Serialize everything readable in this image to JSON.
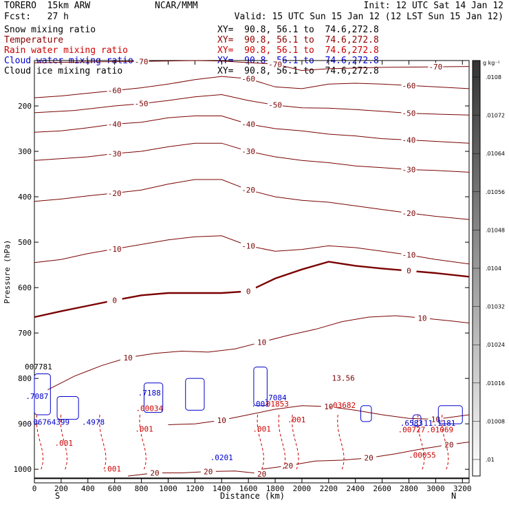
{
  "header": {
    "model": "TORERO  15km ARW",
    "forecast": "Fcst:   27 h",
    "center": "NCAR/MMM",
    "init": "Init: 12 UTC Sat 14 Jan 12",
    "valid": "Valid: 15 UTC Sun 15 Jan 12 (12 LST Sun 15 Jan 12)"
  },
  "fields": [
    {
      "label": "Snow mixing ratio",
      "xy": "XY=  90.8, 56.1 to  74.6,272.8",
      "color": "#000000"
    },
    {
      "label": "Temperature",
      "xy": "XY=  90.8, 56.1 to  74.6,272.8",
      "color": "#8b0000"
    },
    {
      "label": "Rain water mixing ratio",
      "xy": "XY=  90.8, 56.1 to  74.6,272.8",
      "color": "#cc0000"
    },
    {
      "label": "Cloud water mixing ratio",
      "xy": "XY=  90.8, 56.1 to  74.6,272.8",
      "color": "#0000cc"
    },
    {
      "label": "Cloud ice mixing ratio",
      "xy": "XY=  90.8, 56.1 to  74.6,272.8",
      "color": "#000000"
    }
  ],
  "colors": {
    "temperature": "#7a0000",
    "rain": "#cc0000",
    "cloud_water": "#0000cc",
    "cloud_ice": "#000000"
  },
  "chart_data": {
    "type": "cross-section contour",
    "xlabel": "Distance (km)",
    "ylabel": "Pressure (hPa)",
    "x_range": [
      0,
      3250
    ],
    "y_range": [
      1030,
      100
    ],
    "x_ticks": [
      0,
      200,
      400,
      600,
      800,
      1000,
      1200,
      1400,
      1600,
      1800,
      2000,
      2200,
      2400,
      2600,
      2800,
      3000,
      3200
    ],
    "y_ticks": [
      200,
      300,
      400,
      500,
      600,
      700,
      800,
      900,
      1000
    ],
    "endpoints": {
      "left": "S",
      "right": "N"
    },
    "colorbar": {
      "units": "g kg⁻¹",
      "labels": [
        ".01",
        ".01008",
        ".01016",
        ".01024",
        ".01032",
        ".0104",
        ".01048",
        ".01056",
        ".01064",
        ".01072",
        ".0108"
      ],
      "color_low": "#ffffff",
      "color_high": "#333333"
    },
    "temperature_isotherms": [
      {
        "value": -70,
        "points": [
          [
            0,
            105
          ],
          [
            400,
            103
          ],
          [
            800,
            102
          ],
          [
            1200,
            100
          ],
          [
            1400,
            101
          ],
          [
            1800,
            108
          ],
          [
            2000,
            122
          ],
          [
            2200,
            118
          ],
          [
            2600,
            115
          ],
          [
            3000,
            114
          ],
          [
            3250,
            113
          ]
        ]
      },
      {
        "value": -60,
        "points": [
          [
            0,
            182
          ],
          [
            200,
            178
          ],
          [
            400,
            172
          ],
          [
            600,
            166
          ],
          [
            800,
            160
          ],
          [
            1000,
            152
          ],
          [
            1200,
            142
          ],
          [
            1400,
            135
          ],
          [
            1600,
            140
          ],
          [
            1800,
            158
          ],
          [
            2000,
            162
          ],
          [
            2200,
            152
          ],
          [
            2400,
            150
          ],
          [
            2600,
            152
          ],
          [
            2800,
            155
          ],
          [
            3000,
            158
          ],
          [
            3250,
            162
          ]
        ]
      },
      {
        "value": -50,
        "points": [
          [
            0,
            215
          ],
          [
            300,
            210
          ],
          [
            600,
            200
          ],
          [
            800,
            195
          ],
          [
            1000,
            188
          ],
          [
            1200,
            180
          ],
          [
            1400,
            175
          ],
          [
            1600,
            188
          ],
          [
            1800,
            198
          ],
          [
            2000,
            204
          ],
          [
            2200,
            205
          ],
          [
            2400,
            208
          ],
          [
            2600,
            212
          ],
          [
            2800,
            216
          ],
          [
            3000,
            218
          ],
          [
            3250,
            220
          ]
        ]
      },
      {
        "value": -40,
        "points": [
          [
            0,
            258
          ],
          [
            200,
            255
          ],
          [
            400,
            248
          ],
          [
            600,
            240
          ],
          [
            800,
            236
          ],
          [
            1000,
            226
          ],
          [
            1200,
            222
          ],
          [
            1400,
            222
          ],
          [
            1600,
            240
          ],
          [
            1800,
            250
          ],
          [
            2000,
            255
          ],
          [
            2200,
            262
          ],
          [
            2400,
            266
          ],
          [
            2600,
            272
          ],
          [
            2800,
            275
          ],
          [
            3000,
            278
          ],
          [
            3250,
            282
          ]
        ]
      },
      {
        "value": -30,
        "points": [
          [
            0,
            320
          ],
          [
            200,
            316
          ],
          [
            400,
            312
          ],
          [
            600,
            305
          ],
          [
            800,
            300
          ],
          [
            1000,
            290
          ],
          [
            1200,
            282
          ],
          [
            1400,
            282
          ],
          [
            1600,
            300
          ],
          [
            1800,
            312
          ],
          [
            2000,
            320
          ],
          [
            2200,
            325
          ],
          [
            2400,
            332
          ],
          [
            2600,
            336
          ],
          [
            2800,
            340
          ],
          [
            3000,
            342
          ],
          [
            3250,
            346
          ]
        ]
      },
      {
        "value": -20,
        "points": [
          [
            0,
            410
          ],
          [
            200,
            405
          ],
          [
            400,
            398
          ],
          [
            600,
            392
          ],
          [
            800,
            385
          ],
          [
            1000,
            372
          ],
          [
            1200,
            362
          ],
          [
            1400,
            362
          ],
          [
            1600,
            385
          ],
          [
            1800,
            400
          ],
          [
            2000,
            408
          ],
          [
            2200,
            412
          ],
          [
            2400,
            420
          ],
          [
            2600,
            428
          ],
          [
            2800,
            436
          ],
          [
            3000,
            443
          ],
          [
            3250,
            450
          ]
        ]
      },
      {
        "value": -10,
        "points": [
          [
            0,
            545
          ],
          [
            200,
            538
          ],
          [
            400,
            525
          ],
          [
            600,
            515
          ],
          [
            800,
            505
          ],
          [
            1000,
            495
          ],
          [
            1200,
            488
          ],
          [
            1400,
            486
          ],
          [
            1600,
            508
          ],
          [
            1800,
            520
          ],
          [
            2000,
            516
          ],
          [
            2200,
            508
          ],
          [
            2400,
            512
          ],
          [
            2600,
            520
          ],
          [
            2800,
            528
          ],
          [
            3000,
            538
          ],
          [
            3250,
            548
          ]
        ]
      },
      {
        "value": 0,
        "points": [
          [
            0,
            665
          ],
          [
            200,
            652
          ],
          [
            400,
            640
          ],
          [
            600,
            628
          ],
          [
            800,
            617
          ],
          [
            1000,
            612
          ],
          [
            1200,
            612
          ],
          [
            1400,
            612
          ],
          [
            1600,
            608
          ],
          [
            1800,
            580
          ],
          [
            2000,
            560
          ],
          [
            2200,
            543
          ],
          [
            2400,
            552
          ],
          [
            2600,
            558
          ],
          [
            2800,
            563
          ],
          [
            3000,
            568
          ],
          [
            3250,
            576
          ]
        ]
      },
      {
        "value": 10,
        "points": [
          [
            100,
            825
          ],
          [
            300,
            795
          ],
          [
            500,
            772
          ],
          [
            700,
            754
          ],
          [
            900,
            745
          ],
          [
            1100,
            740
          ],
          [
            1300,
            742
          ],
          [
            1500,
            735
          ],
          [
            1700,
            720
          ],
          [
            1900,
            705
          ],
          [
            2100,
            692
          ],
          [
            2300,
            675
          ],
          [
            2500,
            665
          ],
          [
            2700,
            662
          ],
          [
            2900,
            667
          ],
          [
            3100,
            673
          ],
          [
            3250,
            678
          ]
        ]
      },
      {
        "value": 10,
        "points": [
          [
            1000,
            902
          ],
          [
            1200,
            900
          ],
          [
            1400,
            892
          ],
          [
            1600,
            880
          ],
          [
            1800,
            868
          ],
          [
            2000,
            860
          ],
          [
            2200,
            862
          ],
          [
            2400,
            870
          ],
          [
            2600,
            880
          ],
          [
            2800,
            888
          ],
          [
            3000,
            890
          ],
          [
            3250,
            880
          ]
        ]
      },
      {
        "value": 20,
        "points": [
          [
            1700,
            1000
          ],
          [
            1900,
            992
          ],
          [
            2100,
            982
          ],
          [
            2300,
            980
          ],
          [
            2500,
            975
          ],
          [
            2700,
            966
          ],
          [
            2900,
            955
          ],
          [
            3100,
            946
          ],
          [
            3250,
            940
          ]
        ]
      },
      {
        "value": 20,
        "points": [
          [
            700,
            1015
          ],
          [
            900,
            1008
          ],
          [
            1100,
            1008
          ],
          [
            1300,
            1005
          ],
          [
            1500,
            1004
          ],
          [
            1700,
            1010
          ]
        ]
      }
    ],
    "mixing_ratio_labels": [
      {
        "x": 20,
        "p": 845,
        "text": ".7087",
        "color": "#0000cc"
      },
      {
        "x": 110,
        "p": 902,
        "text": ".06764399",
        "color": "#0000cc"
      },
      {
        "x": 440,
        "p": 902,
        "text": ".4978",
        "color": "#0000cc"
      },
      {
        "x": 860,
        "p": 838,
        "text": ".7188",
        "color": "#0000cc"
      },
      {
        "x": 860,
        "p": 872,
        "text": ".00034",
        "color": "#cc0000"
      },
      {
        "x": 1690,
        "p": 862,
        "text": ".001",
        "color": "#0000cc"
      },
      {
        "x": 1800,
        "p": 848,
        "text": ".7084",
        "color": "#0000cc"
      },
      {
        "x": 1800,
        "p": 862,
        "text": ".01853",
        "color": "#cc0000"
      },
      {
        "x": 2300,
        "p": 865,
        "text": ".03682",
        "color": "#cc0000"
      },
      {
        "x": 2310,
        "p": 805,
        "text": "13.56",
        "color": "#7a0000"
      },
      {
        "x": 2820,
        "p": 904,
        "text": ".6583",
        "color": "#0000cc"
      },
      {
        "x": 2820,
        "p": 919,
        "text": ".00727",
        "color": "#cc0000"
      },
      {
        "x": 3030,
        "p": 904,
        "text": "11.1181",
        "color": "#0000cc"
      },
      {
        "x": 3030,
        "p": 919,
        "text": ".01069",
        "color": "#cc0000"
      },
      {
        "x": 2900,
        "p": 975,
        "text": ".00055",
        "color": "#cc0000"
      },
      {
        "x": 1400,
        "p": 980,
        "text": ".0201",
        "color": "#0000cc"
      },
      {
        "x": 220,
        "p": 948,
        "text": ".001",
        "color": "#cc0000"
      },
      {
        "x": 580,
        "p": 1005,
        "text": ".001",
        "color": "#cc0000"
      },
      {
        "x": 820,
        "p": 917,
        "text": ".001",
        "color": "#cc0000"
      },
      {
        "x": 1700,
        "p": 917,
        "text": ".001",
        "color": "#cc0000"
      },
      {
        "x": 1960,
        "p": 897,
        "text": ".001",
        "color": "#cc0000"
      },
      {
        "x": 30,
        "p": 780,
        "text": "007781",
        "color": "#000000"
      }
    ],
    "ground_pressure_hPa": 1020
  }
}
